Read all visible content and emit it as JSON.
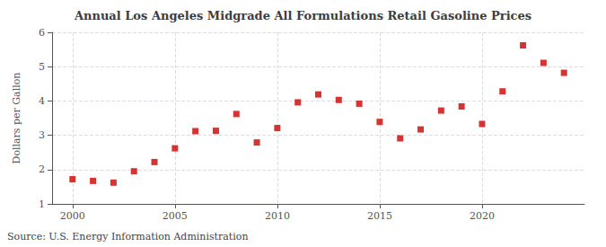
{
  "chart_data": {
    "type": "scatter",
    "title": "Annual Los Angeles Midgrade All Formulations Retail Gasoline Prices",
    "ylabel": "Dollars per Gallon",
    "source": "Source: U.S. Energy Information Administration",
    "x": [
      2000,
      2001,
      2002,
      2003,
      2004,
      2005,
      2006,
      2007,
      2008,
      2009,
      2010,
      2011,
      2012,
      2013,
      2014,
      2015,
      2016,
      2017,
      2018,
      2019,
      2020,
      2021,
      2022,
      2023,
      2024
    ],
    "values": [
      1.72,
      1.67,
      1.62,
      1.95,
      2.22,
      2.62,
      3.12,
      3.13,
      3.62,
      2.79,
      3.21,
      3.96,
      4.19,
      4.03,
      3.92,
      3.39,
      2.91,
      3.17,
      3.72,
      3.84,
      3.33,
      4.28,
      5.62,
      5.11,
      4.82
    ],
    "color": "#cc0000",
    "marker": "square",
    "xlim": [
      1999,
      2025
    ],
    "ylim": [
      1,
      6
    ],
    "xticks": [
      2000,
      2005,
      2010,
      2015,
      2020
    ],
    "yticks": [
      1,
      2,
      3,
      4,
      5,
      6
    ],
    "grid": true
  }
}
